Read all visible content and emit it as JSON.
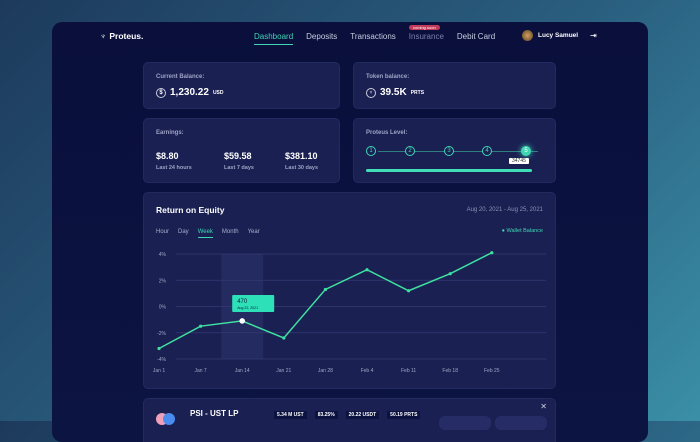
{
  "nav": {
    "brand": "Proteus.",
    "links": [
      "Dashboard",
      "Deposits",
      "Transactions",
      "Insurance",
      "Debit Card"
    ],
    "active": "Dashboard",
    "badge": "coming soon",
    "user": "Lucy Samuel"
  },
  "balance": {
    "label": "Current Balance:",
    "value": "1,230.22",
    "unit": "USD"
  },
  "token": {
    "label": "Token balance:",
    "value": "39.5K",
    "unit": "PRTS"
  },
  "earnings": {
    "label": "Earnings:",
    "items": [
      {
        "value": "$8.80",
        "period": "Last 24 hours"
      },
      {
        "value": "$59.58",
        "period": "Last 7 days"
      },
      {
        "value": "$381.10",
        "period": "Last 30 days"
      }
    ]
  },
  "level": {
    "label": "Proteus Level:",
    "steps": [
      "1",
      "2",
      "3",
      "4",
      "5"
    ],
    "current": 5,
    "points": "34745",
    "progress": 1.0
  },
  "chart": {
    "title": "Return on Equity",
    "range": "Aug 20, 2021 - Aug 25, 2021",
    "tabs": [
      "Hour",
      "Day",
      "Week",
      "Month",
      "Year"
    ],
    "active_tab": "Week",
    "tooltip": {
      "value": "470",
      "date": "Aug 22, 2021"
    }
  },
  "chart_data": {
    "type": "line",
    "categories": [
      "Jan 1",
      "Jan 7",
      "Jan 14",
      "Jan 21",
      "Jan 28",
      "Feb 4",
      "Feb 11",
      "Feb 18",
      "Feb 25"
    ],
    "series": [
      {
        "name": "Wallet Balance",
        "values": [
          -3.2,
          -1.5,
          -1.1,
          -2.4,
          1.3,
          2.8,
          1.2,
          2.5,
          4.1
        ],
        "color": "#3fe0a0"
      }
    ],
    "yticks": [
      "4%",
      "2%",
      "0%",
      "-2%",
      "-4%"
    ],
    "ylim": [
      -4,
      4
    ],
    "legend": "top-right",
    "grid": true,
    "highlight": "Jan 14"
  },
  "pool": {
    "name": "PSI - UST LP",
    "stats": [
      "5.34 M UST",
      "83.25%",
      "20.22 USDT",
      "50.19 PRTS"
    ]
  }
}
